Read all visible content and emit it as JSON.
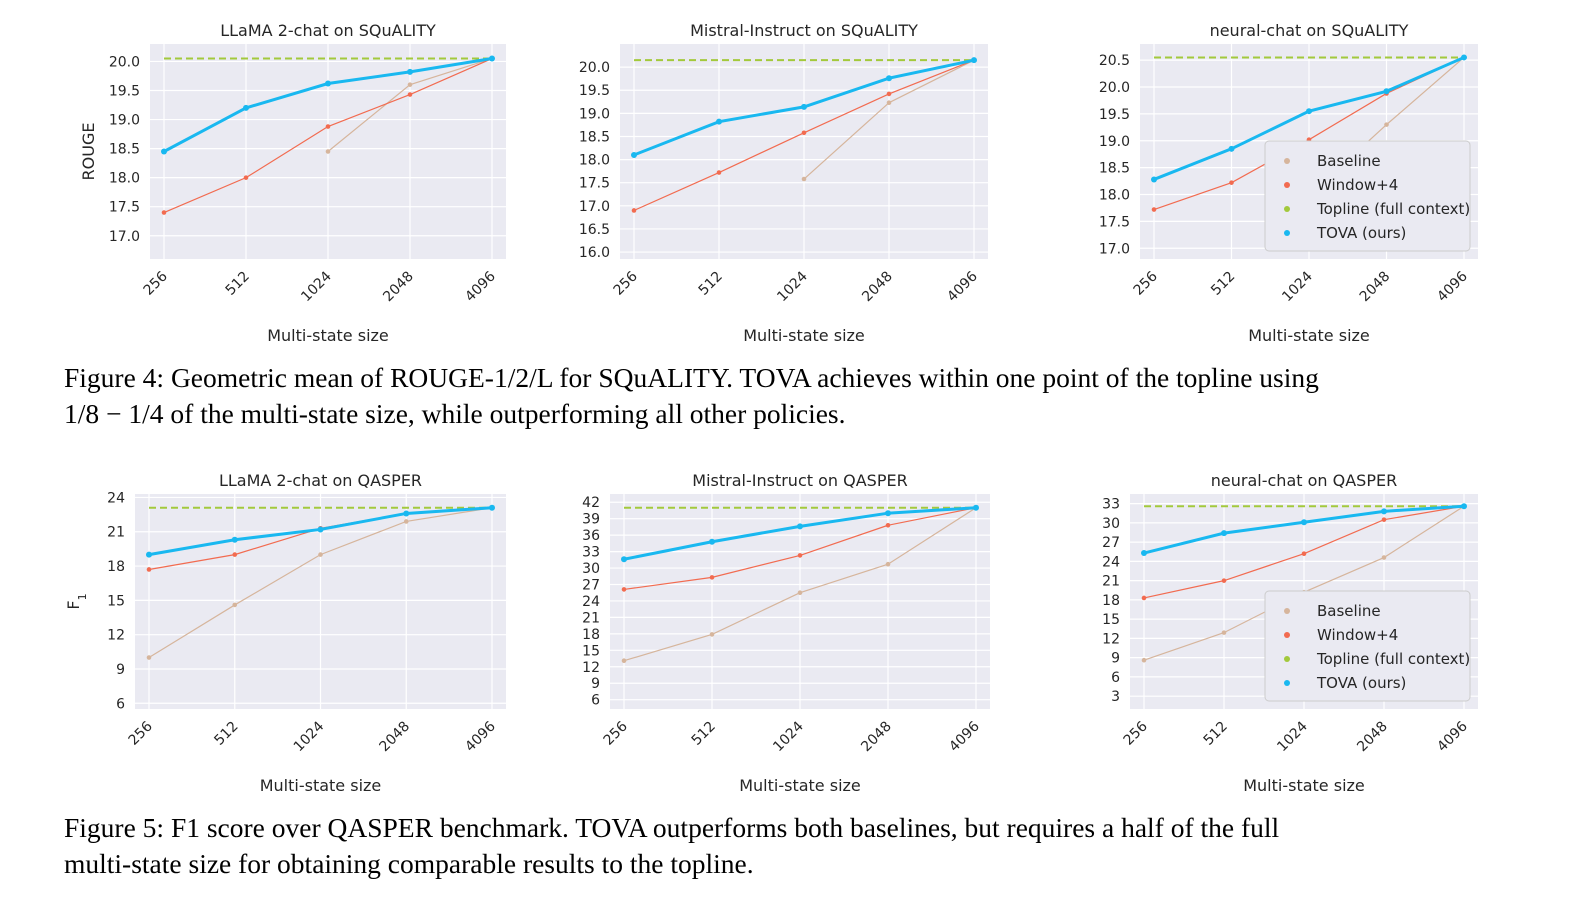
{
  "colors": {
    "Baseline": "#d6b59c",
    "Window+4": "#f26b50",
    "Topline (full context)": "#a3c93c",
    "TOVA (ours)": "#19b8f0"
  },
  "xlabel": "Multi-state size",
  "captions": {
    "fig4_line1": "Figure 4: Geometric mean of ROUGE-1/2/L for SQuALITY. TOVA achieves within one point of the topline using",
    "fig4_line2": "1/8 − 1/4 of the multi-state size, while outperforming all other policies.",
    "fig5_line1": "Figure 5: F1 score over QASPER benchmark. TOVA outperforms both baselines, but requires a half of the full",
    "fig5_line2": "multi-state size for obtaining comparable results to the topline."
  },
  "chart_data": [
    {
      "type": "line",
      "title": "LLaMA 2-chat on SQuALITY",
      "xlabel": "Multi-state size",
      "ylabel": "ROUGE",
      "categories": [
        "256",
        "512",
        "1024",
        "2048",
        "4096"
      ],
      "x_scale": "log2",
      "ylim": [
        16.6,
        20.3
      ],
      "yticks": [
        17.0,
        17.5,
        18.0,
        18.5,
        19.0,
        19.5,
        20.0
      ],
      "ytick_labels": [
        "17.0",
        "17.5",
        "18.0",
        "18.5",
        "19.0",
        "19.5",
        "20.0"
      ],
      "legend": null,
      "grid": true,
      "topline": 20.05,
      "series": [
        {
          "name": "Baseline",
          "x": [
            1024,
            2048,
            4096
          ],
          "values": [
            18.45,
            19.6,
            20.05
          ]
        },
        {
          "name": "Window+4",
          "x": [
            256,
            512,
            1024,
            2048,
            4096
          ],
          "values": [
            17.4,
            18.0,
            18.88,
            19.43,
            20.05
          ]
        },
        {
          "name": "TOVA (ours)",
          "x": [
            256,
            512,
            1024,
            2048,
            4096
          ],
          "values": [
            18.45,
            19.2,
            19.62,
            19.82,
            20.05
          ]
        }
      ]
    },
    {
      "type": "line",
      "title": "Mistral-Instruct on SQuALITY",
      "xlabel": "Multi-state size",
      "ylabel": "",
      "categories": [
        "256",
        "512",
        "1024",
        "2048",
        "4096"
      ],
      "x_scale": "log2",
      "ylim": [
        15.85,
        20.5
      ],
      "yticks": [
        16.0,
        16.5,
        17.0,
        17.5,
        18.0,
        18.5,
        19.0,
        19.5,
        20.0
      ],
      "ytick_labels": [
        "16.0",
        "16.5",
        "17.0",
        "17.5",
        "18.0",
        "18.5",
        "19.0",
        "19.5",
        "20.0"
      ],
      "legend": null,
      "grid": true,
      "topline": 20.15,
      "series": [
        {
          "name": "Baseline",
          "x": [
            1024,
            2048,
            4096
          ],
          "values": [
            17.58,
            19.23,
            20.15
          ]
        },
        {
          "name": "Window+4",
          "x": [
            256,
            512,
            1024,
            2048,
            4096
          ],
          "values": [
            16.9,
            17.72,
            18.58,
            19.42,
            20.15
          ]
        },
        {
          "name": "TOVA (ours)",
          "x": [
            256,
            512,
            1024,
            2048,
            4096
          ],
          "values": [
            18.1,
            18.82,
            19.14,
            19.76,
            20.15
          ]
        }
      ]
    },
    {
      "type": "line",
      "title": "neural-chat on SQuALITY",
      "xlabel": "Multi-state size",
      "ylabel": "",
      "categories": [
        "256",
        "512",
        "1024",
        "2048",
        "4096"
      ],
      "x_scale": "log2",
      "ylim": [
        16.8,
        20.8
      ],
      "yticks": [
        17.0,
        17.5,
        18.0,
        18.5,
        19.0,
        19.5,
        20.0,
        20.5
      ],
      "ytick_labels": [
        "17.0",
        "17.5",
        "18.0",
        "18.5",
        "19.0",
        "19.5",
        "20.0",
        "20.5"
      ],
      "legend": "lower-right",
      "grid": true,
      "topline": 20.55,
      "series": [
        {
          "name": "Baseline",
          "x": [
            1024,
            2048,
            4096
          ],
          "values": [
            17.98,
            19.3,
            20.55
          ]
        },
        {
          "name": "Window+4",
          "x": [
            256,
            512,
            1024,
            2048,
            4096
          ],
          "values": [
            17.72,
            18.22,
            19.02,
            19.88,
            20.55
          ]
        },
        {
          "name": "TOVA (ours)",
          "x": [
            256,
            512,
            1024,
            2048,
            4096
          ],
          "values": [
            18.28,
            18.85,
            19.55,
            19.92,
            20.55
          ]
        }
      ]
    },
    {
      "type": "line",
      "title": "LLaMA 2-chat on QASPER",
      "xlabel": "Multi-state size",
      "ylabel": "F1",
      "categories": [
        "256",
        "512",
        "1024",
        "2048",
        "4096"
      ],
      "x_scale": "log2",
      "ylim": [
        5.5,
        24.3
      ],
      "yticks": [
        6,
        9,
        12,
        15,
        18,
        21,
        24
      ],
      "ytick_labels": [
        "6",
        "9",
        "12",
        "15",
        "18",
        "21",
        "24"
      ],
      "legend": null,
      "grid": true,
      "topline": 23.1,
      "series": [
        {
          "name": "Baseline",
          "x": [
            256,
            512,
            1024,
            2048,
            4096
          ],
          "values": [
            10.0,
            14.6,
            19.0,
            21.9,
            23.1
          ]
        },
        {
          "name": "Window+4",
          "x": [
            256,
            512,
            1024,
            2048,
            4096
          ],
          "values": [
            17.7,
            19.0,
            21.3,
            22.6,
            23.1
          ]
        },
        {
          "name": "TOVA (ours)",
          "x": [
            256,
            512,
            1024,
            2048,
            4096
          ],
          "values": [
            19.0,
            20.3,
            21.2,
            22.6,
            23.1
          ]
        }
      ]
    },
    {
      "type": "line",
      "title": "Mistral-Instruct on QASPER",
      "xlabel": "Multi-state size",
      "ylabel": "",
      "categories": [
        "256",
        "512",
        "1024",
        "2048",
        "4096"
      ],
      "x_scale": "log2",
      "ylim": [
        4.3,
        43.5
      ],
      "yticks": [
        6,
        9,
        12,
        15,
        18,
        21,
        24,
        27,
        30,
        33,
        36,
        39,
        42
      ],
      "ytick_labels": [
        "6",
        "9",
        "12",
        "15",
        "18",
        "21",
        "24",
        "27",
        "30",
        "33",
        "36",
        "39",
        "42"
      ],
      "legend": null,
      "grid": true,
      "topline": 41.0,
      "series": [
        {
          "name": "Baseline",
          "x": [
            256,
            512,
            1024,
            2048,
            4096
          ],
          "values": [
            13.1,
            17.9,
            25.5,
            30.7,
            41.0
          ]
        },
        {
          "name": "Window+4",
          "x": [
            256,
            512,
            1024,
            2048,
            4096
          ],
          "values": [
            26.1,
            28.3,
            32.3,
            37.8,
            41.0
          ]
        },
        {
          "name": "TOVA (ours)",
          "x": [
            256,
            512,
            1024,
            2048,
            4096
          ],
          "values": [
            31.6,
            34.8,
            37.6,
            40.0,
            41.0
          ]
        }
      ]
    },
    {
      "type": "line",
      "title": "neural-chat on QASPER",
      "xlabel": "Multi-state size",
      "ylabel": "",
      "categories": [
        "256",
        "512",
        "1024",
        "2048",
        "4096"
      ],
      "x_scale": "log2",
      "ylim": [
        1.0,
        34.5
      ],
      "yticks": [
        3,
        6,
        9,
        12,
        15,
        18,
        21,
        24,
        27,
        30,
        33
      ],
      "ytick_labels": [
        "3",
        "6",
        "9",
        "12",
        "15",
        "18",
        "21",
        "24",
        "27",
        "30",
        "33"
      ],
      "legend": "lower-right",
      "grid": true,
      "topline": 32.6,
      "series": [
        {
          "name": "Baseline",
          "x": [
            256,
            512,
            1024,
            2048,
            4096
          ],
          "values": [
            8.6,
            12.9,
            19.2,
            24.6,
            32.6
          ]
        },
        {
          "name": "Window+4",
          "x": [
            256,
            512,
            1024,
            2048,
            4096
          ],
          "values": [
            18.3,
            21.0,
            25.2,
            30.5,
            32.6
          ]
        },
        {
          "name": "TOVA (ours)",
          "x": [
            256,
            512,
            1024,
            2048,
            4096
          ],
          "values": [
            25.3,
            28.4,
            30.1,
            31.8,
            32.6
          ]
        }
      ]
    }
  ],
  "legend_entries": [
    "Baseline",
    "Window+4",
    "Topline (full context)",
    "TOVA (ours)"
  ]
}
